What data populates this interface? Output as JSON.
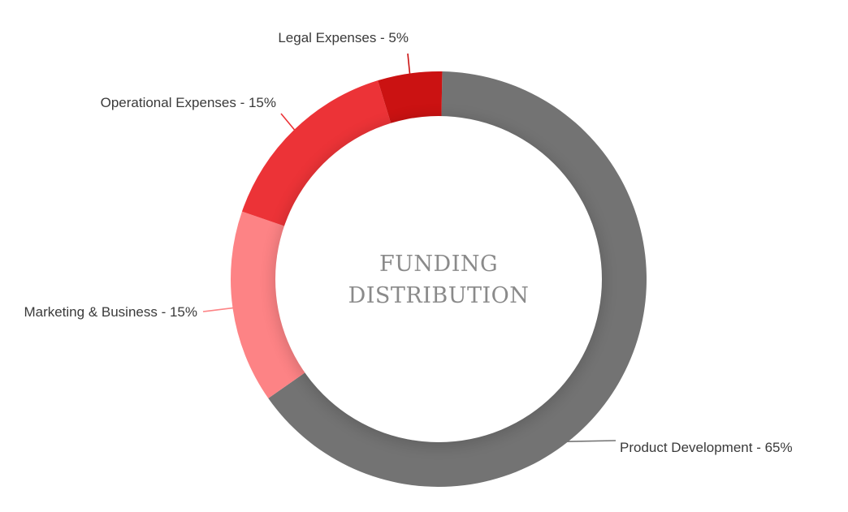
{
  "chart_data": {
    "type": "pie",
    "title_lines": [
      "FUNDING",
      "DISTRIBUTION"
    ],
    "slices": [
      {
        "label": "Product Development - 65%",
        "category": "Product Development",
        "value": 65,
        "color": "#737373"
      },
      {
        "label": "Marketing & Business - 15%",
        "category": "Marketing & Business",
        "value": 15,
        "color": "#fd8385"
      },
      {
        "label": "Operational Expenses - 15%",
        "category": "Operational Expenses",
        "value": 15,
        "color": "#ec3337"
      },
      {
        "label": "Legal Expenses - 5%",
        "category": "Legal Expenses",
        "value": 5,
        "color": "#cb1212"
      }
    ],
    "donut": true
  }
}
